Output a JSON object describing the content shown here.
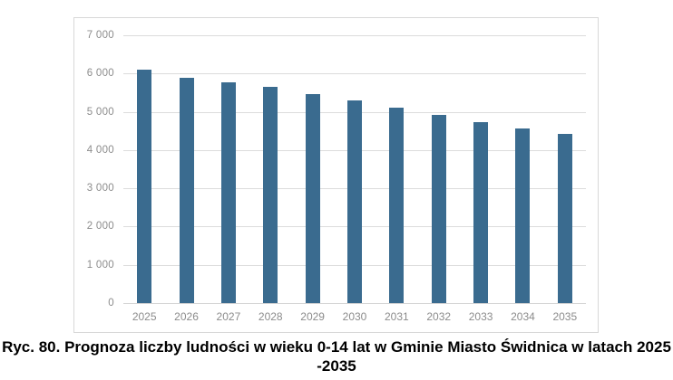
{
  "figure": {
    "caption_line1": "Ryc. 80. Prognoza liczby ludności w wieku 0-14 lat w Gminie Miasto Świdnica w latach 2025",
    "caption_line2": "-2035"
  },
  "chart_data": {
    "type": "bar",
    "categories": [
      "2025",
      "2026",
      "2027",
      "2028",
      "2029",
      "2030",
      "2031",
      "2032",
      "2033",
      "2034",
      "2035"
    ],
    "values": [
      6090,
      5890,
      5760,
      5650,
      5470,
      5290,
      5110,
      4910,
      4730,
      4560,
      4430
    ],
    "title": "",
    "xlabel": "",
    "ylabel": "",
    "ylim": [
      0,
      7000
    ],
    "ytick_interval": 1000,
    "ytick_labels": [
      "0",
      "1 000",
      "2 000",
      "3 000",
      "4 000",
      "5 000",
      "6 000",
      "7 000"
    ],
    "grid": true,
    "legend": false,
    "legend_position": "none",
    "bar_color": "#3a6b8f",
    "gridline_color": "#dcdcdc",
    "axis_line_color": "#d4d4d4",
    "tick_label_color": "#8c8c8c",
    "frame_border_color": "#d8d8d8"
  }
}
